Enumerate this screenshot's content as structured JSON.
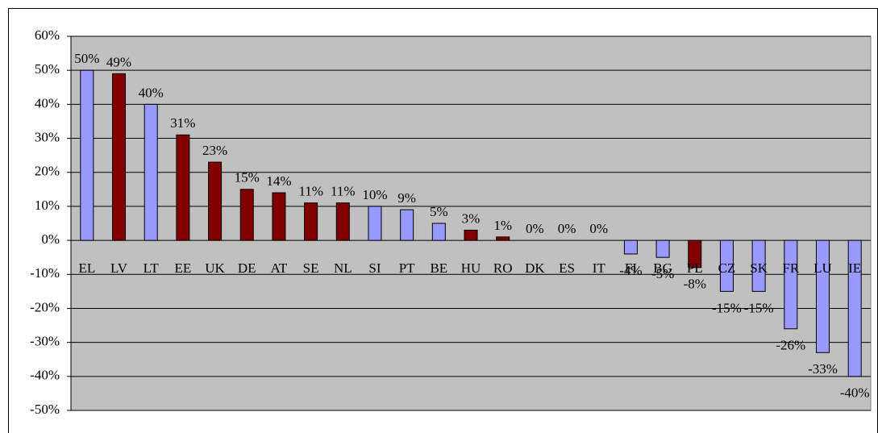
{
  "chart_data": {
    "type": "bar",
    "categories": [
      "EL",
      "LV",
      "LT",
      "EE",
      "UK",
      "DE",
      "AT",
      "SE",
      "NL",
      "SI",
      "PT",
      "BE",
      "HU",
      "RO",
      "DK",
      "ES",
      "IT",
      "FI",
      "BG",
      "PL",
      "CZ",
      "SK",
      "FR",
      "LU",
      "IE"
    ],
    "values": [
      50,
      49,
      40,
      31,
      23,
      15,
      14,
      11,
      11,
      10,
      9,
      5,
      3,
      1,
      0,
      0,
      0,
      -4,
      -5,
      -8,
      -15,
      -15,
      -26,
      -33,
      -40
    ],
    "value_labels": [
      "50%",
      "49%",
      "40%",
      "31%",
      "23%",
      "15%",
      "14%",
      "11%",
      "11%",
      "10%",
      "9%",
      "5%",
      "3%",
      "1%",
      "0%",
      "0%",
      "0%",
      "-4%",
      "-5%",
      "-8%",
      "-15%",
      "-15%",
      "-26%",
      "-33%",
      "-40%"
    ],
    "colors": [
      "#9999ff",
      "#800000",
      "#9999ff",
      "#800000",
      "#800000",
      "#800000",
      "#800000",
      "#800000",
      "#800000",
      "#9999ff",
      "#9999ff",
      "#9999ff",
      "#800000",
      "#800000",
      "#9999ff",
      "#9999ff",
      "#9999ff",
      "#9999ff",
      "#9999ff",
      "#800000",
      "#9999ff",
      "#9999ff",
      "#9999ff",
      "#9999ff",
      "#9999ff"
    ],
    "ylim": [
      -50,
      60
    ],
    "yticks": [
      {
        "value": -50,
        "label": "-50%"
      },
      {
        "value": -40,
        "label": "-40%"
      },
      {
        "value": -30,
        "label": "-30%"
      },
      {
        "value": -20,
        "label": "-20%"
      },
      {
        "value": -10,
        "label": "-10%"
      },
      {
        "value": 0,
        "label": "0%"
      },
      {
        "value": 10,
        "label": "10%"
      },
      {
        "value": 20,
        "label": "20%"
      },
      {
        "value": 30,
        "label": "30%"
      },
      {
        "value": 40,
        "label": "40%"
      },
      {
        "value": 50,
        "label": "50%"
      },
      {
        "value": 60,
        "label": "60%"
      }
    ],
    "grid": true
  }
}
